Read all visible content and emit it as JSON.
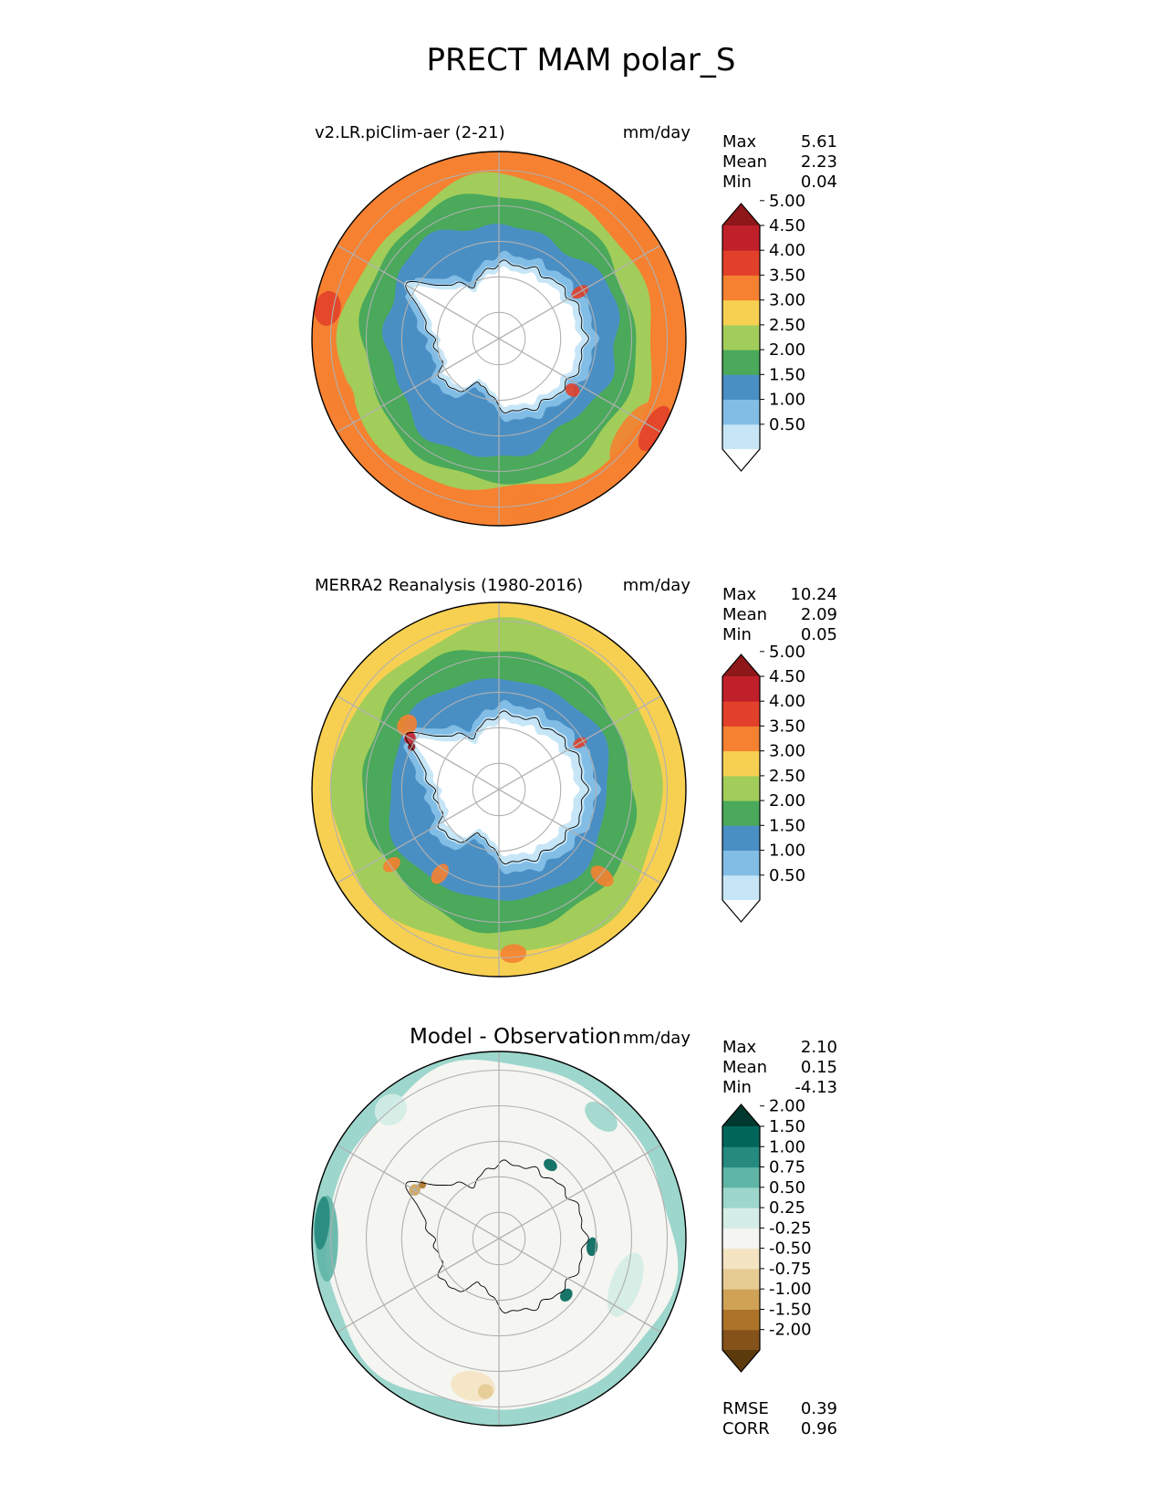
{
  "figure": {
    "title": "PRECT MAM polar_S"
  },
  "colors": {
    "prect_levels": [
      "#ffffff",
      "#c6e6f7",
      "#82bde6",
      "#4a8fc4",
      "#4aa95a",
      "#a2cd5a",
      "#f7d052",
      "#f58131",
      "#e2402a",
      "#c0202a",
      "#8e1719"
    ],
    "diff_levels": [
      "#5b3a0c",
      "#85521a",
      "#ad7429",
      "#cfa256",
      "#e6cb93",
      "#f4e4c2",
      "#f5f5f2",
      "#d4ede6",
      "#9dd6cc",
      "#5fb5a6",
      "#268a7e",
      "#00665a",
      "#02392f"
    ],
    "grid": "#b0b0b0",
    "coast": "#000000"
  },
  "chart_data": [
    {
      "type": "heatmap",
      "projection": "south-polar-stereographic",
      "title": "v2.LR.piClim-aer (2-21)",
      "units": "mm/day",
      "stats": {
        "max_label": "Max",
        "max": "5.61",
        "mean_label": "Mean",
        "mean": "2.23",
        "min_label": "Min",
        "min": "0.04"
      },
      "colorbar": {
        "ticks": [
          "0.50",
          "1.00",
          "1.50",
          "2.00",
          "2.50",
          "3.00",
          "3.50",
          "4.00",
          "4.50",
          "5.00"
        ],
        "extend": "both"
      },
      "field": "model"
    },
    {
      "type": "heatmap",
      "projection": "south-polar-stereographic",
      "title": "MERRA2 Reanalysis (1980-2016)",
      "units": "mm/day",
      "stats": {
        "max_label": "Max",
        "max": "10.24",
        "mean_label": "Mean",
        "mean": "2.09",
        "min_label": "Min",
        "min": "0.05"
      },
      "colorbar": {
        "ticks": [
          "0.50",
          "1.00",
          "1.50",
          "2.00",
          "2.50",
          "3.00",
          "3.50",
          "4.00",
          "4.50",
          "5.00"
        ],
        "extend": "both"
      },
      "field": "obs"
    },
    {
      "type": "heatmap",
      "projection": "south-polar-stereographic",
      "title": "Model - Observation",
      "units": "mm/day",
      "stats": {
        "max_label": "Max",
        "max": "2.10",
        "mean_label": "Mean",
        "mean": "0.15",
        "min_label": "Min",
        "min": "-4.13",
        "rmse_label": "RMSE",
        "rmse": "0.39",
        "corr_label": "CORR",
        "corr": "0.96"
      },
      "colorbar": {
        "ticks": [
          "-2.00",
          "-1.50",
          "-1.00",
          "-0.75",
          "-0.50",
          "-0.25",
          "0.25",
          "0.50",
          "0.75",
          "1.00",
          "1.50",
          "2.00"
        ],
        "extend": "both"
      },
      "field": "diff"
    }
  ]
}
